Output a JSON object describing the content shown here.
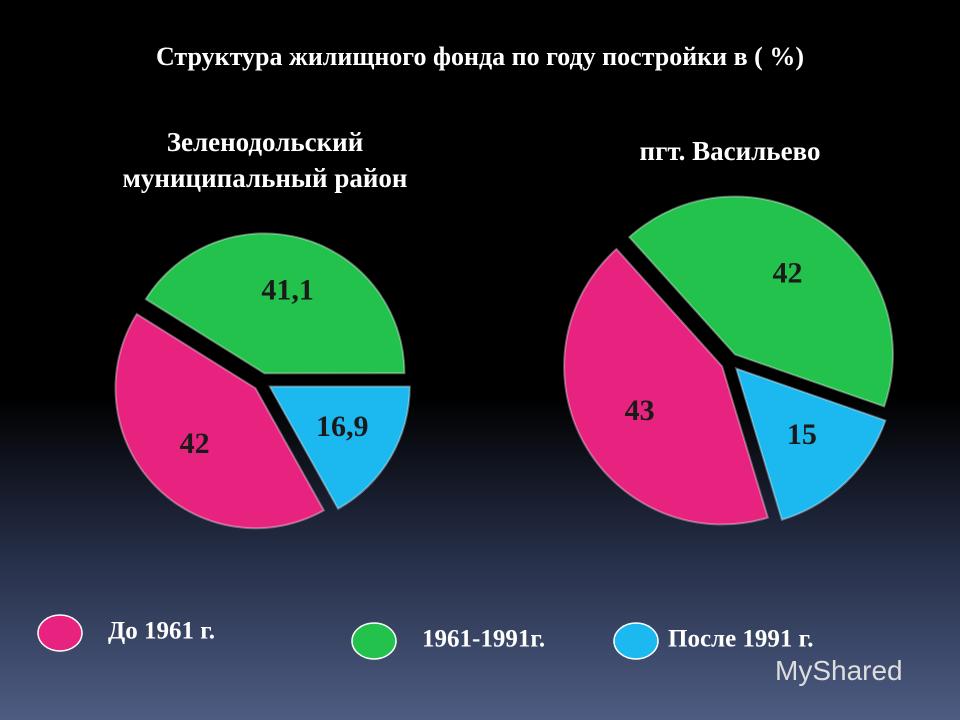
{
  "title": "Структура жилищного фонда по году постройки в ( %)",
  "watermark": "MyShared",
  "chart_data": [
    {
      "type": "pie",
      "title": "Зеленодольский муниципальный район",
      "categories": [
        "До 1961 г.",
        "1961-1991г.",
        "После 1991 г."
      ],
      "values": [
        42,
        41.1,
        16.9
      ],
      "value_labels": [
        "42",
        "41,1",
        "16,9"
      ],
      "colors": [
        "#e8237f",
        "#22c24c",
        "#1cb9f0"
      ]
    },
    {
      "type": "pie",
      "title": "пгт. Васильево",
      "categories": [
        "До 1961 г.",
        "1961-1991г.",
        "После 1991 г."
      ],
      "values": [
        43,
        42,
        15
      ],
      "colors": [
        "#e8237f",
        "#22c24c",
        "#1cb9f0"
      ]
    }
  ]
}
